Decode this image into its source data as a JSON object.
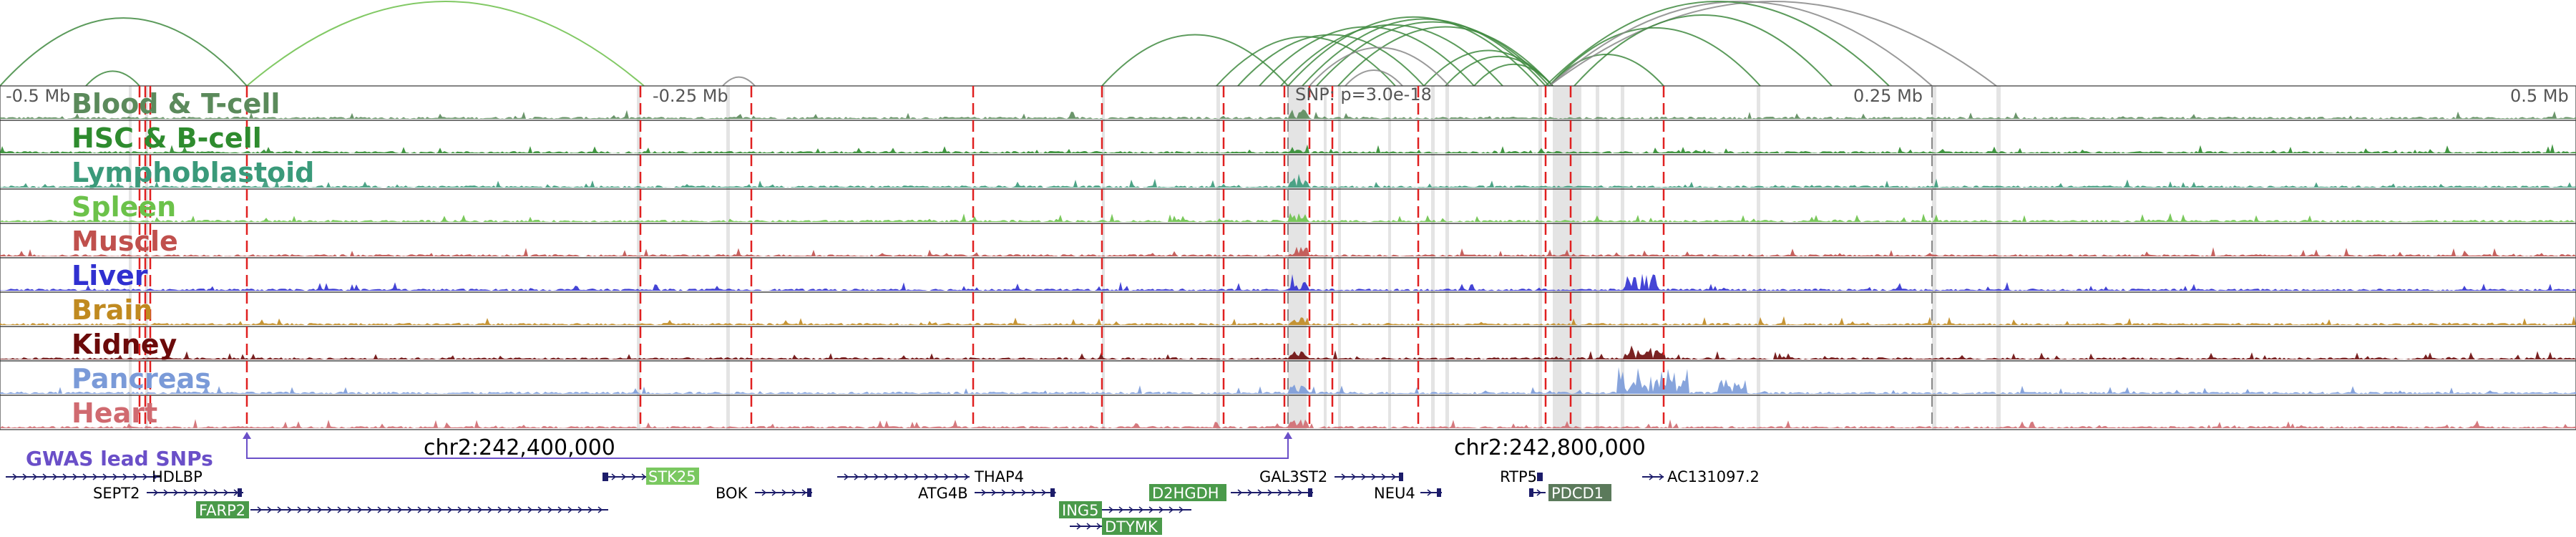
{
  "axis": {
    "left_label": "-0.5 Mb",
    "left_mid_label": "-0.25 Mb",
    "center_label": "SNP: p=3.0e-18",
    "right_mid_label": "0.25 Mb",
    "right_label": "0.5 Mb"
  },
  "tracks": [
    {
      "label": "Blood & T-cell",
      "color": "#5b8a5b"
    },
    {
      "label": "HSC & B-cell",
      "color": "#2e8b2e"
    },
    {
      "label": "Lymphoblastoid",
      "color": "#3a9a7a"
    },
    {
      "label": "Spleen",
      "color": "#6cc24a"
    },
    {
      "label": "Muscle",
      "color": "#c0504d"
    },
    {
      "label": "Liver",
      "color": "#3030d0"
    },
    {
      "label": "Brain",
      "color": "#c08a20"
    },
    {
      "label": "Kidney",
      "color": "#6b0a0a"
    },
    {
      "label": "Pancreas",
      "color": "#7a9ad8"
    },
    {
      "label": "Heart",
      "color": "#d06a70"
    }
  ],
  "gwas": {
    "label": "GWAS lead SNPs",
    "coord_left": "chr2:242,400,000",
    "coord_right": "chr2:242,800,000",
    "color": "#6a4fc8"
  },
  "genes": [
    {
      "name": "HDLBP",
      "highlight": false
    },
    {
      "name": "SEPT2",
      "highlight": false
    },
    {
      "name": "FARP2",
      "highlight": true
    },
    {
      "name": "STK25",
      "highlight": true
    },
    {
      "name": "BOK",
      "highlight": false
    },
    {
      "name": "THAP4",
      "highlight": false
    },
    {
      "name": "ATG4B",
      "highlight": false
    },
    {
      "name": "ING5",
      "highlight": true
    },
    {
      "name": "D2HGDH",
      "highlight": true
    },
    {
      "name": "DTYMK",
      "highlight": true
    },
    {
      "name": "GAL3ST2",
      "highlight": false
    },
    {
      "name": "NEU4",
      "highlight": false
    },
    {
      "name": "RTP5",
      "highlight": false
    },
    {
      "name": "PDCD1",
      "highlight": true
    },
    {
      "name": "AC131097.2",
      "highlight": false
    }
  ],
  "colors": {
    "arc": "#3f8a3f",
    "arc_light": "#6cbf4a",
    "red_marker": "#e02020",
    "gene_dark": "#1c1c6a",
    "gene_highlight_green": "#4a9a4a",
    "gene_highlight_light": "#7ac860"
  }
}
